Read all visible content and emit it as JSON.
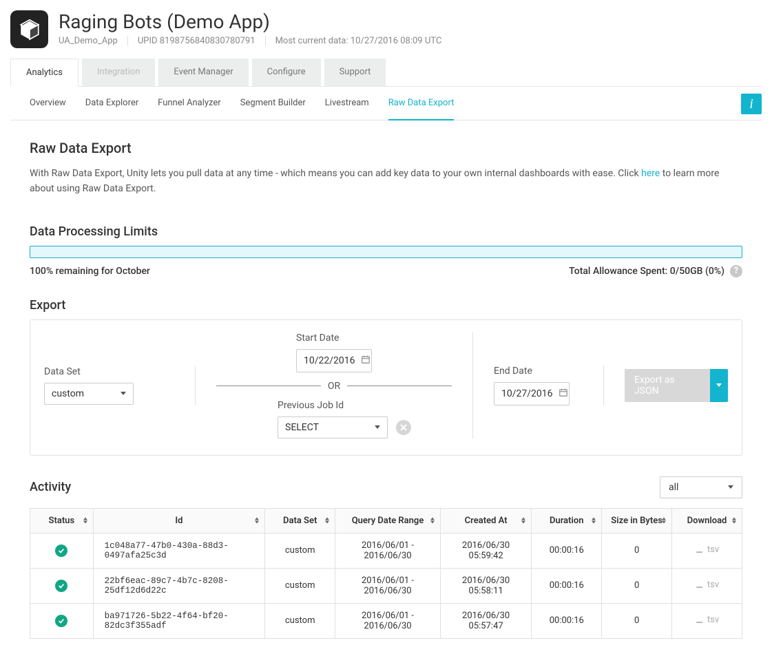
{
  "header": {
    "app_title": "Raging Bots (Demo App)",
    "project_name": "UA_Demo_App",
    "upid_label": "UPID 8198756840830780791",
    "data_timestamp": "Most current data: 10/27/2016 08:09 UTC"
  },
  "primary_tabs": {
    "analytics": "Analytics",
    "integration": "Integration",
    "event_manager": "Event Manager",
    "configure": "Configure",
    "support": "Support"
  },
  "secondary_tabs": {
    "overview": "Overview",
    "data_explorer": "Data Explorer",
    "funnel_analyzer": "Funnel Analyzer",
    "segment_builder": "Segment Builder",
    "livestream": "Livestream",
    "raw_data_export": "Raw Data Export"
  },
  "raw_data": {
    "title": "Raw Data Export",
    "description_pre": "With Raw Data Export, Unity lets you pull data at any time - which means you can add key data to your own internal dashboards with ease. Click ",
    "here": "here",
    "description_post": " to learn more about using Raw Data Export."
  },
  "limits": {
    "title": "Data Processing Limits",
    "remaining": "100% remaining for October",
    "allowance": "Total Allowance Spent: 0/50GB (0%)"
  },
  "export": {
    "title": "Export",
    "dataset_label": "Data Set",
    "dataset_value": "custom",
    "start_label": "Start Date",
    "start_value": "10/22/2016",
    "or": "OR",
    "job_label": "Previous Job Id",
    "job_value": "SELECT",
    "end_label": "End Date",
    "end_value": "10/27/2016",
    "button": "Export as JSON"
  },
  "activity": {
    "title": "Activity",
    "filter": "all",
    "columns": {
      "status": "Status",
      "id": "Id",
      "dataset": "Data Set",
      "range": "Query Date Range",
      "created": "Created At",
      "duration": "Duration",
      "size": "Size in Bytes",
      "download": "Download"
    },
    "rows": [
      {
        "id": "1c048a77-47b0-430a-88d3-0497afa25c3d",
        "dataset": "custom",
        "range": "2016/06/01 - 2016/06/30",
        "created": "2016/06/30 05:59:42",
        "duration": "00:00:16",
        "size": "0",
        "dl": "tsv"
      },
      {
        "id": "22bf6eac-89c7-4b7c-8208-25df12d6d22c",
        "dataset": "custom",
        "range": "2016/06/01 - 2016/06/30",
        "created": "2016/06/30 05:58:11",
        "duration": "00:00:16",
        "size": "0",
        "dl": "tsv"
      },
      {
        "id": "ba971726-5b22-4f64-bf20-82dc3f355adf",
        "dataset": "custom",
        "range": "2016/06/01 - 2016/06/30",
        "created": "2016/06/30 05:57:47",
        "duration": "00:00:16",
        "size": "0",
        "dl": "tsv"
      }
    ]
  }
}
